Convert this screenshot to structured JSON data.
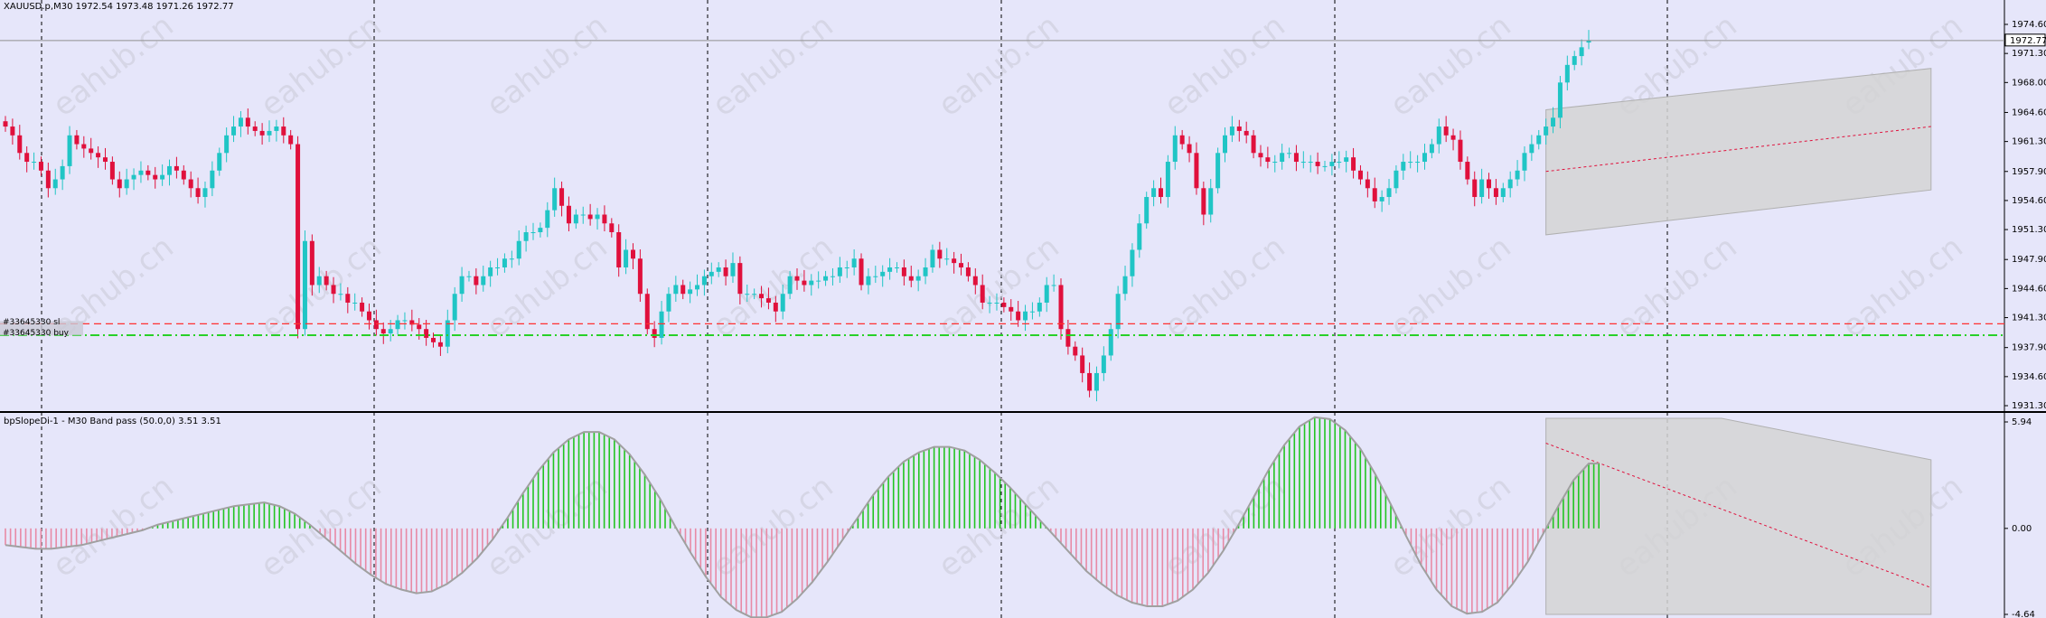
{
  "header": {
    "symbol_line": "XAUUSD.p,M30  1972.54 1973.48 1971.26 1972.77",
    "indicator_line": "bpSlopeDi-1 - M30 Band pass (50.0,0) 3.51 3.51"
  },
  "price_tag": "1972.77",
  "order_labels": {
    "sl": "#33645330 sl",
    "buy": "#33645330 buy"
  },
  "watermark": "eahub.cn",
  "colors": {
    "background": "#e6e6fa",
    "bull": "#20c5c5",
    "bear": "#e0103c",
    "sl_line": "#ff3030",
    "buy_line": "#28d028",
    "hist_pos": "#22c522",
    "hist_neg": "#e88aa6",
    "curve": "#a0a0a0",
    "channel_fill": "#d4d4d4"
  },
  "chart_data": [
    {
      "type": "candlestick",
      "title": "XAUUSD.p,M30",
      "last_ohlc": {
        "open": 1972.54,
        "high": 1973.48,
        "low": 1971.26,
        "close": 1972.77
      },
      "ylim": [
        1931.3,
        1974.6
      ],
      "y_ticks": [
        "1974.60",
        "1971.30",
        "1968.00",
        "1964.60",
        "1961.30",
        "1957.90",
        "1954.60",
        "1951.30",
        "1947.90",
        "1944.60",
        "1941.30",
        "1937.90",
        "1934.60",
        "1931.30"
      ],
      "current_price": 1972.77,
      "horizontal_lines": [
        {
          "name": "sl",
          "value": 1940.6,
          "style": "dash",
          "color": "#ff3030"
        },
        {
          "name": "buy",
          "value": 1939.3,
          "style": "dashdot",
          "color": "#28d028"
        }
      ],
      "channel": {
        "start_index": 216,
        "end_index": 270,
        "upper": [
          1964.9,
          1969.6
        ],
        "lower": [
          1950.7,
          1955.8
        ],
        "mid": [
          1957.9,
          1963.0
        ]
      },
      "closes": [
        1963.0,
        1962.0,
        1960.0,
        1959.0,
        1959.0,
        1958.0,
        1956.0,
        1957.0,
        1958.5,
        1962.0,
        1961.0,
        1960.5,
        1960.0,
        1959.5,
        1959.0,
        1957.0,
        1956.0,
        1957.0,
        1957.5,
        1958.0,
        1957.5,
        1957.0,
        1957.5,
        1958.5,
        1958.0,
        1957.0,
        1956.0,
        1955.0,
        1956.0,
        1958.0,
        1960.0,
        1962.0,
        1963.0,
        1964.0,
        1963.0,
        1962.5,
        1962.0,
        1962.5,
        1963.0,
        1962.0,
        1961.0,
        1940.0,
        1950.0,
        1945.0,
        1946.0,
        1945.0,
        1944.0,
        1944.0,
        1943.0,
        1943.0,
        1942.0,
        1941.0,
        1940.0,
        1939.5,
        1940.0,
        1941.0,
        1941.0,
        1940.5,
        1940.0,
        1939.0,
        1938.5,
        1938.0,
        1941.0,
        1944.0,
        1946.0,
        1946.0,
        1945.0,
        1946.0,
        1947.0,
        1947.0,
        1948.0,
        1948.0,
        1950.0,
        1951.0,
        1951.0,
        1951.5,
        1953.5,
        1956.0,
        1954.0,
        1952.0,
        1953.0,
        1953.0,
        1952.5,
        1953.0,
        1952.0,
        1951.0,
        1947.0,
        1949.0,
        1948.0,
        1944.0,
        1940.0,
        1939.0,
        1942.0,
        1944.0,
        1945.0,
        1944.0,
        1944.5,
        1945.0,
        1946.0,
        1946.5,
        1947.0,
        1946.0,
        1947.5,
        1944.0,
        1944.0,
        1944.0,
        1943.5,
        1943.0,
        1942.0,
        1944.0,
        1946.0,
        1945.5,
        1945.0,
        1945.5,
        1945.5,
        1946.0,
        1946.0,
        1947.0,
        1947.0,
        1948.0,
        1945.0,
        1946.0,
        1946.0,
        1946.5,
        1947.0,
        1947.0,
        1946.0,
        1945.5,
        1946.0,
        1947.0,
        1949.0,
        1948.0,
        1948.0,
        1947.5,
        1947.0,
        1946.0,
        1945.0,
        1943.0,
        1943.0,
        1943.0,
        1942.5,
        1942.0,
        1941.0,
        1942.0,
        1942.0,
        1943.0,
        1945.0,
        1945.0,
        1940.0,
        1938.0,
        1937.0,
        1935.0,
        1933.0,
        1935.0,
        1937.0,
        1940.0,
        1944.0,
        1946.0,
        1949.0,
        1952.0,
        1955.0,
        1956.0,
        1955.0,
        1959.0,
        1962.0,
        1961.0,
        1960.0,
        1956.0,
        1953.0,
        1956.0,
        1960.0,
        1962.0,
        1963.0,
        1962.5,
        1962.0,
        1960.0,
        1959.5,
        1959.0,
        1959.0,
        1960.0,
        1960.0,
        1959.0,
        1959.0,
        1959.0,
        1958.5,
        1958.5,
        1959.0,
        1959.0,
        1959.5,
        1958.0,
        1957.0,
        1956.0,
        1954.5,
        1955.0,
        1956.0,
        1958.0,
        1959.0,
        1959.0,
        1959.0,
        1960.0,
        1961.0,
        1963.0,
        1962.0,
        1961.5,
        1959.0,
        1957.0,
        1955.0,
        1957.0,
        1956.0,
        1955.0,
        1956.0,
        1957.0,
        1958.0,
        1960.0,
        1961.0,
        1962.0,
        1963.0,
        1964.0,
        1968.0,
        1970.0,
        1971.0,
        1972.0,
        1972.77
      ],
      "subpanel": {
        "title": "bpSlopeDi-1 - M30 Band pass (50.0,0)",
        "values": [
          3.51,
          3.51
        ],
        "ylim": [
          -4.64,
          5.94
        ],
        "y_ticks": [
          "5.94",
          "0.00",
          "-4.64"
        ],
        "histogram": [
          -0.9,
          -1.0,
          -1.1,
          -1.1,
          -1.0,
          -0.9,
          -0.7,
          -0.5,
          -0.3,
          -0.1,
          0.2,
          0.4,
          0.6,
          0.8,
          1.0,
          1.2,
          1.3,
          1.4,
          1.2,
          0.8,
          0.2,
          -0.5,
          -1.2,
          -1.9,
          -2.5,
          -3.0,
          -3.3,
          -3.5,
          -3.4,
          -3.0,
          -2.4,
          -1.6,
          -0.6,
          0.6,
          1.9,
          3.1,
          4.1,
          4.8,
          5.2,
          5.2,
          4.8,
          4.0,
          2.9,
          1.6,
          0.1,
          -1.3,
          -2.6,
          -3.7,
          -4.4,
          -4.8,
          -4.8,
          -4.5,
          -3.8,
          -2.9,
          -1.8,
          -0.6,
          0.6,
          1.8,
          2.8,
          3.6,
          4.1,
          4.4,
          4.4,
          4.2,
          3.7,
          3.0,
          2.2,
          1.3,
          0.4,
          -0.5,
          -1.4,
          -2.3,
          -3.0,
          -3.6,
          -4.0,
          -4.2,
          -4.2,
          -3.9,
          -3.3,
          -2.4,
          -1.2,
          0.2,
          1.7,
          3.2,
          4.5,
          5.5,
          6.0,
          5.9,
          5.3,
          4.3,
          2.9,
          1.3,
          -0.4,
          -2.0,
          -3.3,
          -4.2,
          -4.6,
          -4.5,
          -4.0,
          -3.0,
          -1.8,
          -0.3,
          1.2,
          2.6,
          3.5
        ]
      }
    }
  ]
}
